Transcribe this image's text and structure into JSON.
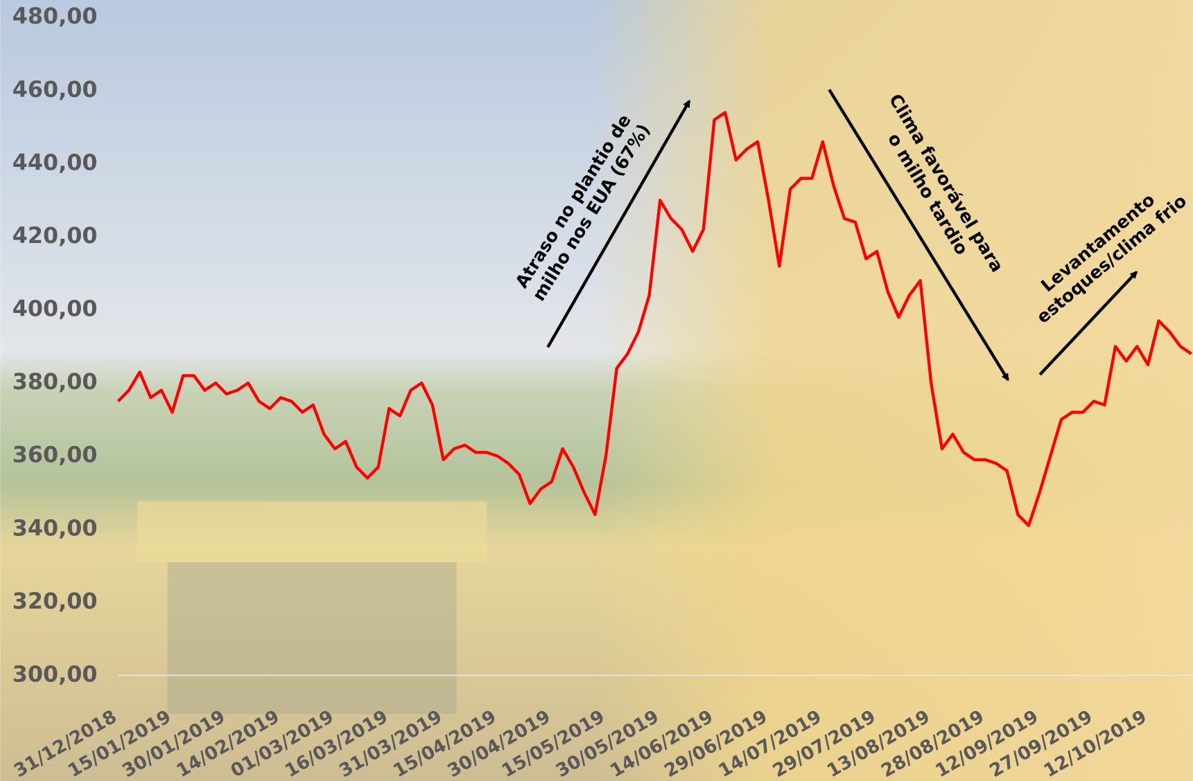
{
  "chart_data": {
    "type": "line",
    "categories": [
      "31/12/2018",
      null,
      null,
      null,
      null,
      "15/01/2019",
      null,
      null,
      null,
      null,
      "30/01/2019",
      null,
      null,
      null,
      null,
      "14/02/2019",
      null,
      null,
      null,
      null,
      "01/03/2019",
      null,
      null,
      null,
      null,
      "16/03/2019",
      null,
      null,
      null,
      null,
      "31/03/2019",
      null,
      null,
      null,
      null,
      "15/04/2019",
      null,
      null,
      null,
      null,
      "30/04/2019",
      null,
      null,
      null,
      null,
      "15/05/2019",
      null,
      null,
      null,
      null,
      "30/05/2019",
      null,
      null,
      null,
      null,
      "14/06/2019",
      null,
      null,
      null,
      null,
      "29/06/2019",
      null,
      null,
      null,
      null,
      "14/07/2019",
      null,
      null,
      null,
      null,
      "29/07/2019",
      null,
      null,
      null,
      null,
      "13/08/2019",
      null,
      null,
      null,
      null,
      "28/08/2019",
      null,
      null,
      null,
      null,
      "12/09/2019",
      null,
      null,
      null,
      null,
      "27/09/2019",
      null,
      null,
      null,
      null,
      "12/10/2019",
      null,
      null,
      null,
      null
    ],
    "series": [
      {
        "color": "#ff0000",
        "values": [
          375,
          378,
          383,
          376,
          378,
          372,
          382,
          382,
          378,
          380,
          377,
          378,
          380,
          375,
          373,
          376,
          375,
          372,
          374,
          366,
          362,
          364,
          357,
          354,
          357,
          373,
          371,
          378,
          380,
          374,
          359,
          362,
          363,
          361,
          361,
          360,
          358,
          355,
          347,
          351,
          353,
          362,
          357,
          350,
          344,
          360,
          384,
          388,
          394,
          404,
          430,
          425,
          422,
          416,
          422,
          452,
          454,
          441,
          444,
          446,
          430,
          412,
          433,
          436,
          436,
          446,
          434,
          425,
          424,
          414,
          416,
          405,
          398,
          404,
          408,
          380,
          362,
          366,
          361,
          359,
          359,
          358,
          356,
          344,
          341,
          350,
          360,
          370,
          372,
          372,
          375,
          374,
          390,
          386,
          390,
          385,
          397,
          394,
          390,
          388
        ]
      }
    ],
    "ylim": [
      300,
      480
    ],
    "yticks": [
      {
        "value": 300,
        "label": "300,00"
      },
      {
        "value": 320,
        "label": "320,00"
      },
      {
        "value": 340,
        "label": "340,00"
      },
      {
        "value": 360,
        "label": "360,00"
      },
      {
        "value": 380,
        "label": "380,00"
      },
      {
        "value": 400,
        "label": "400,00"
      },
      {
        "value": 420,
        "label": "420,00"
      },
      {
        "value": 440,
        "label": "440,00"
      },
      {
        "value": 460,
        "label": "460,00"
      },
      {
        "value": 480,
        "label": "480,00"
      }
    ],
    "annotations": [
      {
        "lines": [
          "Atraso no plantio de",
          "milho nos EUA (67%)"
        ]
      },
      {
        "lines": [
          "Clima favorável para",
          "o milho tardio"
        ]
      },
      {
        "lines": [
          "Levantamento",
          "estoques/clima frio"
        ]
      }
    ]
  }
}
